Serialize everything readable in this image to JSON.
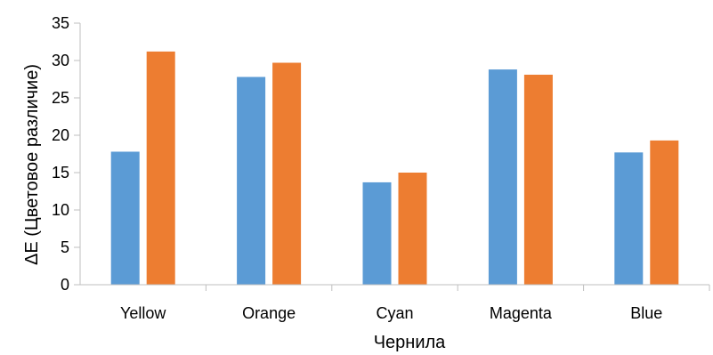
{
  "chart_data": {
    "type": "bar",
    "title": "",
    "xlabel": "Чернила",
    "ylabel": "ΔE (Цветовое различие)",
    "categories": [
      "Yellow",
      "Orange",
      "Cyan",
      "Magenta",
      "Blue"
    ],
    "series": [
      {
        "color": "#5B9BD5",
        "values": [
          17.8,
          27.8,
          13.7,
          28.8,
          17.7
        ]
      },
      {
        "color": "#ED7D31",
        "values": [
          31.2,
          29.7,
          15.0,
          28.1,
          19.3
        ]
      }
    ],
    "ylim": [
      0,
      35
    ],
    "yticks": [
      0,
      5,
      10,
      15,
      20,
      25,
      30,
      35
    ],
    "grid": false,
    "legend": "none"
  }
}
